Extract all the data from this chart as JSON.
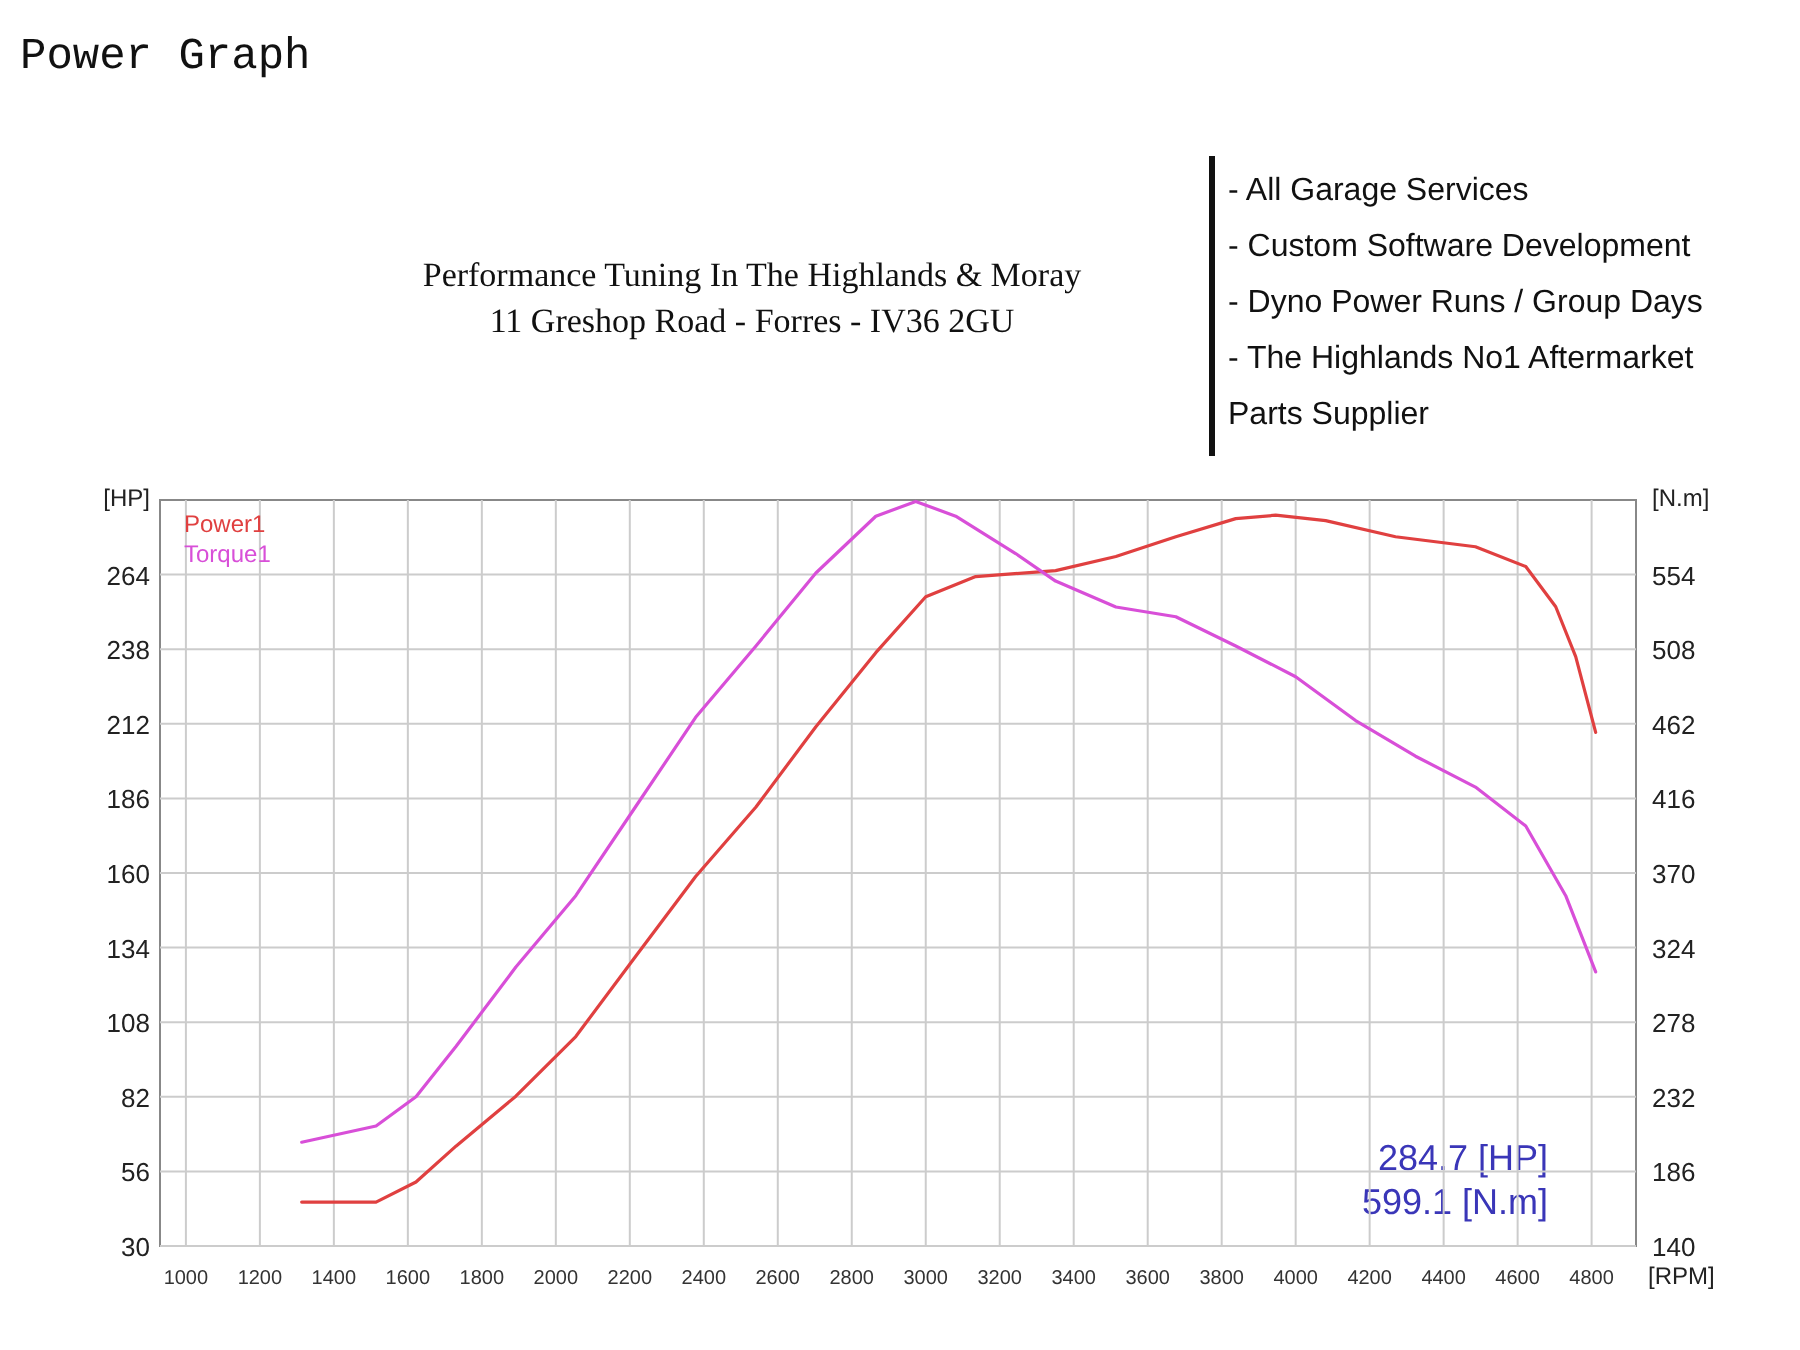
{
  "chart_data": {
    "type": "line",
    "title": "Power Graph",
    "xlabel": "[RPM]",
    "ylabel": "[HP]",
    "y2label": "[N.m]",
    "xlim": [
      930,
      4920
    ],
    "xticks": [
      1000,
      1200,
      1400,
      1600,
      1800,
      2000,
      2200,
      2400,
      2600,
      2800,
      3000,
      3200,
      3400,
      3600,
      3800,
      4000,
      4200,
      4400,
      4600,
      4800
    ],
    "ylim": [
      30,
      290
    ],
    "yticks": [
      30,
      56,
      82,
      108,
      134,
      160,
      186,
      212,
      238,
      264
    ],
    "y2lim": [
      140,
      600
    ],
    "y2ticks": [
      140,
      186,
      232,
      278,
      324,
      370,
      416,
      462,
      508,
      554
    ],
    "grid": true,
    "legend": "top left",
    "marker": "none",
    "line_style": "solid",
    "series": [
      {
        "name": "Power1",
        "color": "#e04040",
        "x": [
          1313,
          1514,
          1622,
          1730,
          1892,
          2054,
          2216,
          2378,
          2541,
          2703,
          2865,
          3000,
          3135,
          3351,
          3514,
          3676,
          3838,
          3946,
          4081,
          4270,
          4486,
          4622,
          4703,
          4757,
          4811
        ],
        "values": [
          45.3,
          45.3,
          52.3,
          64.8,
          82.2,
          103,
          131,
          158.8,
          183,
          211,
          236.8,
          256.3,
          263.3,
          265.4,
          270.3,
          277.2,
          283.5,
          284.7,
          282.8,
          277.2,
          273.7,
          266.8,
          252.8,
          235.4,
          209
        ]
      },
      {
        "name": "Torque1",
        "color": "#d84fd8",
        "axis": "y2",
        "x": [
          1313,
          1514,
          1622,
          1730,
          1892,
          2054,
          2216,
          2378,
          2541,
          2703,
          2865,
          2973,
          3081,
          3243,
          3351,
          3514,
          3676,
          3838,
          4000,
          4162,
          4324,
          4486,
          4622,
          4730,
          4811
        ],
        "values": [
          204,
          214,
          232,
          263,
          312,
          356,
          411,
          466,
          510,
          555,
          590,
          599.1,
          590,
          567,
          550,
          534,
          528,
          510,
          491,
          464,
          442,
          423,
          399,
          356,
          309
        ]
      }
    ],
    "annotations": [
      "Performance Tuning In The Highlands & Moray",
      "11 Greshop Road - Forres - IV36 2GU",
      "- All Garage Services",
      "- Custom Software Development",
      "- Dyno Power Runs / Group Days",
      "- The Highlands No1 Aftermarket",
      "Parts Supplier",
      "284.7 [HP]",
      "599.1 [N.m]"
    ]
  }
}
